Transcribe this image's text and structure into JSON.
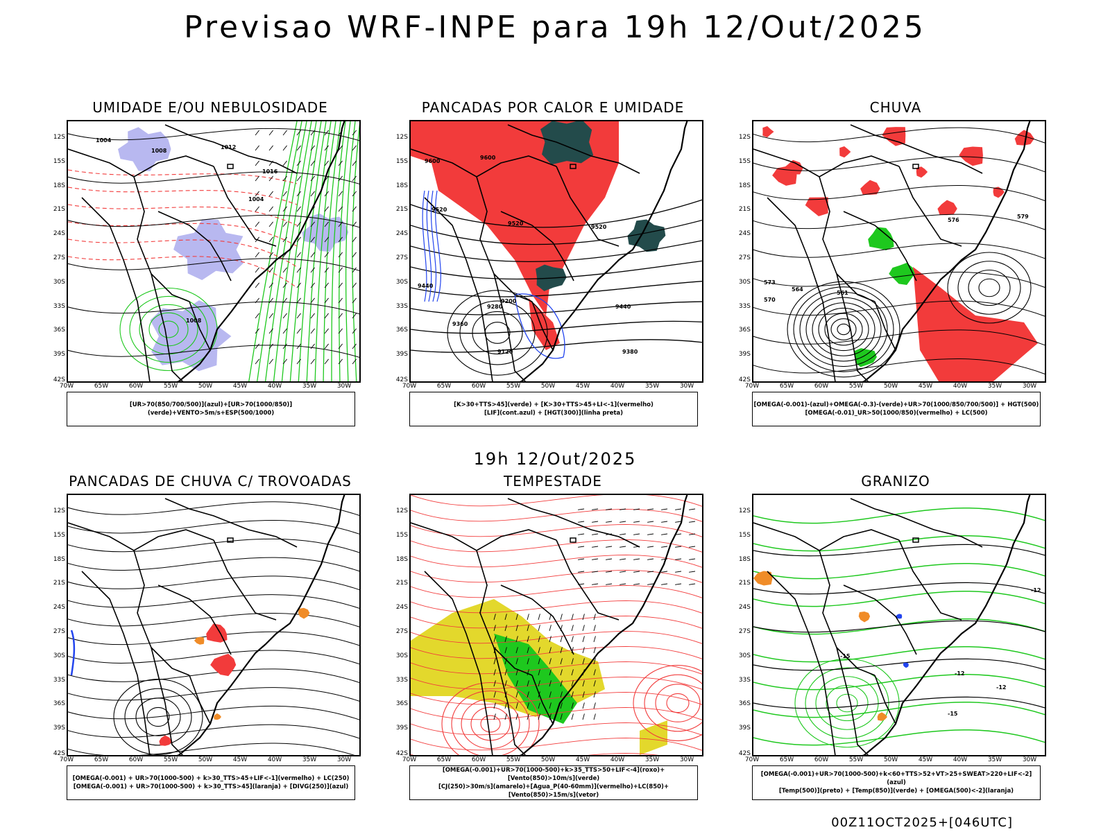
{
  "header": {
    "title": "Previsao WRF-INPE  para 19h 12/Out/2025"
  },
  "mid_title": "19h 12/Out/2025",
  "footer": "00Z11OCT2025+[046UTC]",
  "axes": {
    "lat_labels": [
      "12S",
      "15S",
      "18S",
      "21S",
      "24S",
      "27S",
      "30S",
      "33S",
      "36S",
      "39S",
      "42S"
    ],
    "lon_labels": [
      "70W",
      "65W",
      "60W",
      "55W",
      "50W",
      "45W",
      "40W",
      "35W",
      "30W"
    ]
  },
  "colors": {
    "red": "#f23b3b",
    "green": "#1ec81e",
    "blue": "#2244ee",
    "lavender": "#b8b8f0",
    "darkteal": "#234b4b",
    "yellow": "#e3d82c",
    "orange": "#f08c28"
  },
  "panels": [
    {
      "title": "UMIDADE E/OU NEBULOSIDADE",
      "legend": [
        "[UR>70(850/700/500)](azul)+[UR>70(1000/850)](verde)+VENTO>5m/s+ESP(500/1000)"
      ],
      "contour_labels": [
        "1004",
        "1008",
        "1012",
        "1016",
        "1004",
        "1008"
      ]
    },
    {
      "title": "PANCADAS POR CALOR E UMIDADE",
      "legend": [
        "[K>30+TTS>45](verde) + [K>30+TTS>45+LI<-1](vermelho)",
        "[LIF](cont.azul) + [HGT(300)](linha preta)"
      ],
      "contour_labels": [
        "9600",
        "9600",
        "9520",
        "9520",
        "9520",
        "9440",
        "9440",
        "9360",
        "9280",
        "9200",
        "9120",
        "9380"
      ]
    },
    {
      "title": "CHUVA",
      "legend": [
        "[OMEGA(-0.001)-(azul)+OMEGA(-0.3)-(verde)+UR>70(1000/850/700/500)] + HGT(500)",
        "[OMEGA(-0.01)_UR>50(1000/850)(vermelho) + LC(500)"
      ],
      "contour_labels": [
        "576",
        "579",
        "573",
        "570",
        "564",
        "561"
      ]
    },
    {
      "title": "PANCADAS DE CHUVA C/ TROVOADAS",
      "legend": [
        "[OMEGA(-0.001) + UR>70(1000-500) + k>30_TTS>45+LIF<-1](vermelho) + LC(250)",
        "[OMEGA(-0.001) + UR>70(1000-500) + k>30_TTS>45](laranja) + [DIVG(250)](azul)"
      ],
      "contour_labels": []
    },
    {
      "title": "TEMPESTADE",
      "legend": [
        "[OMEGA(-0.001)+UR>70(1000-500)+k>35_TTS>50+LIF<-4](roxo)+[Vento(850)>10m/s](verde)",
        "[CJ(250)>30m/s](amarelo)+[Agua_P(40-60mm)](vermelho)+LC(850)+[Vento(850)>15m/s](vetor)"
      ],
      "contour_labels": []
    },
    {
      "title": "GRANIZO",
      "legend": [
        "[OMEGA(-0.001)+UR>70(1000-500)+k<60+TTS>52+VT>25+SWEAT>220+LIF<-2](azul)",
        "[Temp(500)](preto) + [Temp(850)](verde) + [OMEGA(500)<-2](laranja)"
      ],
      "contour_labels": [
        "-12",
        "-15",
        "-12",
        "-12",
        "-15"
      ]
    }
  ]
}
